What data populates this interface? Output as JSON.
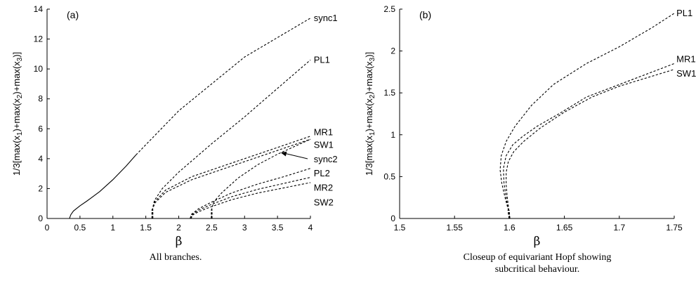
{
  "chart_data": [
    {
      "type": "line",
      "panel_label": "(a)",
      "xlabel": "β",
      "ylabel_parts": [
        "1/3[max(x",
        "1",
        ")+max(x",
        "2",
        ")+max(x",
        "3",
        ")]"
      ],
      "caption": [
        "All branches."
      ],
      "xlim": [
        0,
        4
      ],
      "ylim": [
        0,
        14
      ],
      "xticks": [
        0,
        0.5,
        1,
        1.5,
        2,
        2.5,
        3,
        3.5,
        4
      ],
      "yticks": [
        0,
        2,
        4,
        6,
        8,
        10,
        12,
        14
      ],
      "grid": false,
      "series": [
        {
          "name": "sync1",
          "style": "solid",
          "points": [
            [
              0.34,
              0
            ],
            [
              0.36,
              0.25
            ],
            [
              0.4,
              0.5
            ],
            [
              0.5,
              0.85
            ],
            [
              0.6,
              1.15
            ],
            [
              0.8,
              1.8
            ],
            [
              1.0,
              2.6
            ],
            [
              1.2,
              3.5
            ],
            [
              1.35,
              4.25
            ]
          ]
        },
        {
          "name": "sync1",
          "style": "dashed",
          "points": [
            [
              1.35,
              4.25
            ],
            [
              2.0,
              7.2
            ],
            [
              3.0,
              10.8
            ],
            [
              4.0,
              13.4
            ]
          ]
        },
        {
          "name": "PL1",
          "style": "dashed",
          "points": [
            [
              1.6,
              0
            ],
            [
              1.6,
              0.6
            ],
            [
              1.63,
              1.2
            ],
            [
              1.75,
              2.0
            ],
            [
              2.0,
              3.1
            ],
            [
              2.5,
              5.0
            ],
            [
              3.0,
              6.8
            ],
            [
              3.5,
              8.7
            ],
            [
              4.0,
              10.6
            ]
          ]
        },
        {
          "name": "MR1",
          "style": "dashed",
          "points": [
            [
              1.6,
              0
            ],
            [
              1.6,
              0.6
            ],
            [
              1.64,
              1.15
            ],
            [
              1.8,
              1.9
            ],
            [
              2.2,
              2.8
            ],
            [
              2.8,
              3.7
            ],
            [
              3.4,
              4.6
            ],
            [
              4.0,
              5.5
            ]
          ]
        },
        {
          "name": "SW1",
          "style": "dashed",
          "points": [
            [
              1.6,
              0
            ],
            [
              1.6,
              0.6
            ],
            [
              1.64,
              1.05
            ],
            [
              1.8,
              1.75
            ],
            [
              2.2,
              2.6
            ],
            [
              2.8,
              3.5
            ],
            [
              3.4,
              4.4
            ],
            [
              4.0,
              5.3
            ]
          ]
        },
        {
          "name": "sync2",
          "style": "dashed",
          "points": [
            [
              2.5,
              0
            ],
            [
              2.5,
              0.6
            ],
            [
              2.53,
              1.1
            ],
            [
              2.65,
              1.7
            ],
            [
              2.9,
              2.7
            ],
            [
              3.2,
              3.6
            ],
            [
              3.5,
              4.3
            ],
            [
              3.8,
              4.9
            ],
            [
              4.0,
              5.3
            ]
          ]
        },
        {
          "name": "PL2",
          "style": "dashed",
          "points": [
            [
              2.18,
              0
            ],
            [
              2.2,
              0.3
            ],
            [
              2.3,
              0.65
            ],
            [
              2.5,
              1.1
            ],
            [
              2.8,
              1.7
            ],
            [
              3.2,
              2.3
            ],
            [
              3.6,
              2.8
            ],
            [
              4.0,
              3.35
            ]
          ]
        },
        {
          "name": "MR2",
          "style": "dashed",
          "points": [
            [
              2.18,
              0
            ],
            [
              2.2,
              0.25
            ],
            [
              2.3,
              0.55
            ],
            [
              2.5,
              0.95
            ],
            [
              2.8,
              1.45
            ],
            [
              3.2,
              1.95
            ],
            [
              3.6,
              2.35
            ],
            [
              4.0,
              2.75
            ]
          ]
        },
        {
          "name": "SW2",
          "style": "dashed",
          "points": [
            [
              2.18,
              0
            ],
            [
              2.2,
              0.2
            ],
            [
              2.3,
              0.45
            ],
            [
              2.5,
              0.8
            ],
            [
              2.8,
              1.25
            ],
            [
              3.2,
              1.7
            ],
            [
              3.6,
              2.05
            ],
            [
              4.0,
              2.4
            ]
          ]
        }
      ],
      "labels": [
        {
          "text": "sync1",
          "x": 4.05,
          "y": 13.4
        },
        {
          "text": "PL1",
          "x": 4.05,
          "y": 10.6
        },
        {
          "text": "MR1",
          "x": 4.05,
          "y": 5.75
        },
        {
          "text": "SW1",
          "x": 4.05,
          "y": 4.9
        },
        {
          "text": "sync2",
          "x": 4.05,
          "y": 3.95
        },
        {
          "text": "PL2",
          "x": 4.05,
          "y": 3.0
        },
        {
          "text": "MR2",
          "x": 4.05,
          "y": 2.05
        },
        {
          "text": "SW2",
          "x": 4.05,
          "y": 1.05
        }
      ],
      "annotations": [
        {
          "type": "arrow",
          "from": [
            4.0,
            3.9
          ],
          "to": [
            3.55,
            4.4
          ],
          "label": "sync2"
        }
      ]
    },
    {
      "type": "line",
      "panel_label": "(b)",
      "xlabel": "β",
      "ylabel_parts": [
        "1/3[max(x",
        "1",
        ")+max(x",
        "2",
        ")+max(x",
        "3",
        ")]"
      ],
      "caption": [
        "Closeup of equivariant Hopf showing",
        "subcritical behaviour."
      ],
      "xlim": [
        1.5,
        1.75
      ],
      "ylim": [
        0,
        2.5
      ],
      "xticks": [
        1.5,
        1.55,
        1.6,
        1.65,
        1.7,
        1.75
      ],
      "yticks": [
        0,
        0.5,
        1,
        1.5,
        2,
        2.5
      ],
      "grid": false,
      "series": [
        {
          "name": "PL1",
          "style": "dashed",
          "points": [
            [
              1.6,
              0
            ],
            [
              1.599,
              0.1
            ],
            [
              1.596,
              0.25
            ],
            [
              1.593,
              0.42
            ],
            [
              1.5915,
              0.58
            ],
            [
              1.5925,
              0.75
            ],
            [
              1.597,
              0.92
            ],
            [
              1.605,
              1.1
            ],
            [
              1.62,
              1.35
            ],
            [
              1.64,
              1.6
            ],
            [
              1.67,
              1.85
            ],
            [
              1.7,
              2.05
            ],
            [
              1.73,
              2.28
            ],
            [
              1.75,
              2.45
            ]
          ]
        },
        {
          "name": "MR1",
          "style": "dashed",
          "points": [
            [
              1.6,
              0
            ],
            [
              1.599,
              0.1
            ],
            [
              1.597,
              0.25
            ],
            [
              1.595,
              0.42
            ],
            [
              1.5945,
              0.6
            ],
            [
              1.597,
              0.75
            ],
            [
              1.603,
              0.88
            ],
            [
              1.612,
              0.98
            ],
            [
              1.625,
              1.1
            ],
            [
              1.645,
              1.25
            ],
            [
              1.67,
              1.45
            ],
            [
              1.7,
              1.6
            ],
            [
              1.73,
              1.75
            ],
            [
              1.75,
              1.85
            ]
          ]
        },
        {
          "name": "SW1",
          "style": "dashed",
          "points": [
            [
              1.6,
              0
            ],
            [
              1.5995,
              0.1
            ],
            [
              1.598,
              0.25
            ],
            [
              1.597,
              0.4
            ],
            [
              1.597,
              0.55
            ],
            [
              1.599,
              0.68
            ],
            [
              1.604,
              0.8
            ],
            [
              1.613,
              0.92
            ],
            [
              1.628,
              1.08
            ],
            [
              1.65,
              1.27
            ],
            [
              1.675,
              1.45
            ],
            [
              1.7,
              1.58
            ],
            [
              1.73,
              1.7
            ],
            [
              1.75,
              1.78
            ]
          ]
        }
      ],
      "labels": [
        {
          "text": "PL1",
          "x": 1.752,
          "y": 2.45
        },
        {
          "text": "MR1",
          "x": 1.752,
          "y": 1.9
        },
        {
          "text": "SW1",
          "x": 1.752,
          "y": 1.73
        }
      ]
    }
  ]
}
